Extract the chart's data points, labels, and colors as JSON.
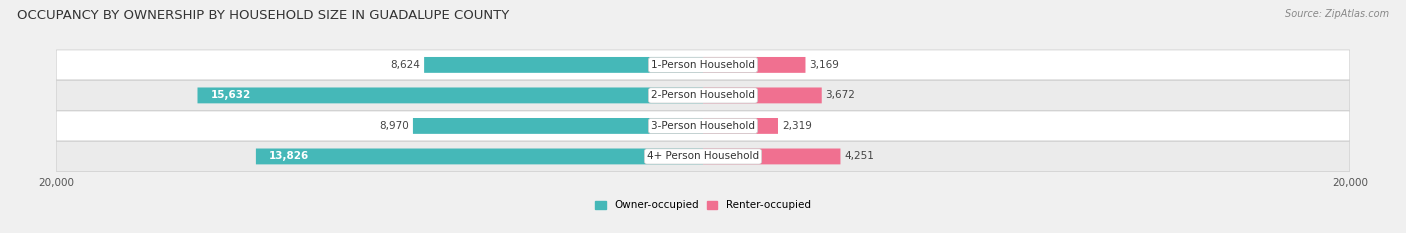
{
  "title": "OCCUPANCY BY OWNERSHIP BY HOUSEHOLD SIZE IN GUADALUPE COUNTY",
  "source": "Source: ZipAtlas.com",
  "categories": [
    "1-Person Household",
    "2-Person Household",
    "3-Person Household",
    "4+ Person Household"
  ],
  "owner_values": [
    8624,
    15632,
    8970,
    13826
  ],
  "renter_values": [
    3169,
    3672,
    2319,
    4251
  ],
  "max_val": 20000,
  "owner_color": "#45B8B8",
  "renter_color": "#F07090",
  "bg_color": "#F0F0F0",
  "row_colors": [
    "#FFFFFF",
    "#EBEBEB",
    "#FFFFFF",
    "#EBEBEB"
  ],
  "title_fontsize": 9.5,
  "label_fontsize": 7.5,
  "tick_fontsize": 7.5,
  "legend_fontsize": 7.5,
  "source_fontsize": 7,
  "owner_label_colors": [
    "#555555",
    "#FFFFFF",
    "#555555",
    "#FFFFFF"
  ],
  "owner_label_inside": [
    false,
    true,
    false,
    true
  ]
}
